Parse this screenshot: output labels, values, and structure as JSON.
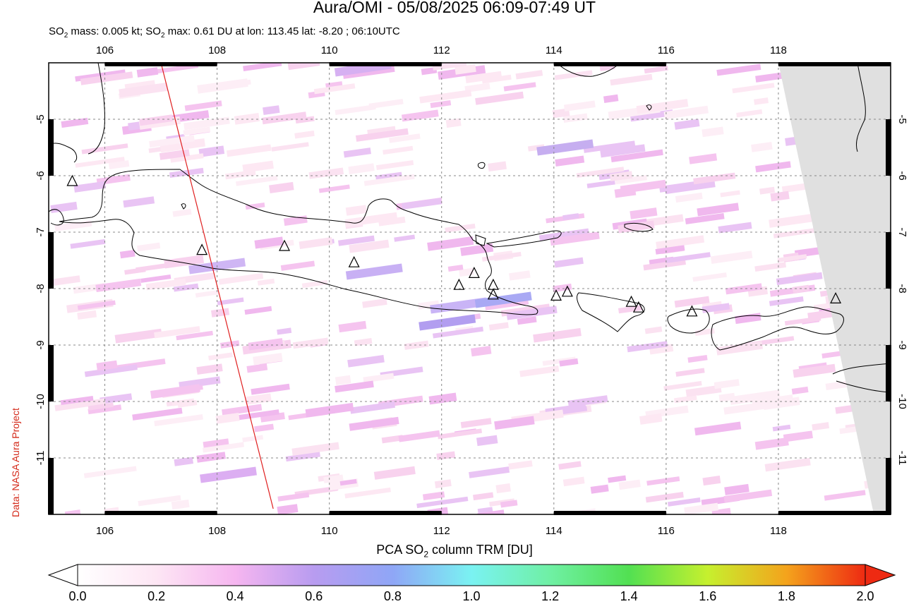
{
  "title": "Aura/OMI - 05/08/2025 06:09-07:49 UT",
  "subtitle_parts": {
    "a": "SO",
    "a_sub": "2",
    "b": " mass: 0.005 kt; SO",
    "b_sub": "2",
    "c": " max: 0.61 DU at lon: 113.45 lat: -8.20 ; 06:10UTC"
  },
  "credit": "Data: NASA Aura Project",
  "colorbar": {
    "label_pre": "PCA SO",
    "label_sub": "2",
    "label_post": " column TRM [DU]",
    "ticks": [
      "0.0",
      "0.2",
      "0.4",
      "0.6",
      "0.8",
      "1.0",
      "1.2",
      "1.4",
      "1.6",
      "1.8",
      "2.0"
    ]
  },
  "map": {
    "lon_range": [
      105,
      120
    ],
    "lat_range": [
      -12,
      -4
    ],
    "lon_ticks": [
      106,
      108,
      110,
      112,
      114,
      116,
      118
    ],
    "lat_ticks": [
      -5,
      -6,
      -7,
      -8,
      -9,
      -10,
      -11
    ],
    "lon_tick_labels": [
      "106",
      "108",
      "110",
      "112",
      "114",
      "116",
      "118"
    ],
    "lat_tick_labels": [
      "-5",
      "-6",
      "-7",
      "-8",
      "-9",
      "-10",
      "-11"
    ],
    "volcanoes": [
      [
        105.42,
        -6.1
      ],
      [
        107.73,
        -7.32
      ],
      [
        109.2,
        -7.25
      ],
      [
        110.44,
        -7.54
      ],
      [
        112.31,
        -7.94
      ],
      [
        112.58,
        -7.73
      ],
      [
        112.92,
        -7.94
      ],
      [
        112.92,
        -8.11
      ],
      [
        114.04,
        -8.13
      ],
      [
        114.24,
        -8.06
      ],
      [
        115.38,
        -8.24
      ],
      [
        115.51,
        -8.34
      ],
      [
        116.46,
        -8.41
      ],
      [
        119.02,
        -8.18
      ]
    ],
    "orbit_track": [
      [
        107.0,
        -4.0
      ],
      [
        109.0,
        -11.9
      ]
    ],
    "no_data_region": [
      [
        118.0,
        -4.0
      ],
      [
        120.0,
        -4.0
      ],
      [
        120.0,
        -12.0
      ],
      [
        119.7,
        -12.0
      ]
    ]
  }
}
